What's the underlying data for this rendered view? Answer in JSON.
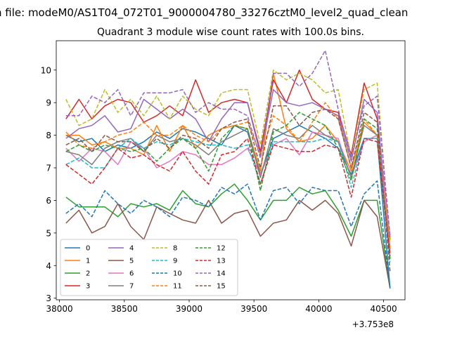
{
  "figure": {
    "suptitle": "n file: modeM0/AS1T04_072T01_9000004780_33276cztM0_level2_quad_clean",
    "offset_label": "+3.753e8"
  },
  "chart_data": {
    "type": "line",
    "title": "Quadrant 3 module wise count rates with 100.0s bins.",
    "xlabel": "",
    "ylabel": "",
    "x_offset": 375300000,
    "xlim": [
      37975,
      40665
    ],
    "ylim": [
      2.95,
      10.9
    ],
    "xticks": [
      38000,
      38500,
      39000,
      39500,
      40000,
      40500
    ],
    "xtick_labels": [
      "38000",
      "38500",
      "39000",
      "39500",
      "40000",
      "40500"
    ],
    "yticks": [
      3,
      4,
      5,
      6,
      7,
      8,
      9,
      10
    ],
    "ytick_labels": [
      "3",
      "4",
      "5",
      "6",
      "7",
      "8",
      "9",
      "10"
    ],
    "grid": false,
    "legend": {
      "position": "lower-left",
      "columns": 4
    },
    "x": [
      38050,
      38150,
      38250,
      38350,
      38450,
      38550,
      38650,
      38750,
      38850,
      38950,
      39050,
      39150,
      39250,
      39350,
      39450,
      39550,
      39650,
      39750,
      39850,
      39950,
      40050,
      40150,
      40250,
      40350,
      40450,
      40550
    ],
    "series": [
      {
        "name": "0",
        "color": "#1f77b4",
        "dash": "solid",
        "values": [
          8.0,
          7.8,
          7.9,
          7.5,
          7.7,
          7.6,
          7.8,
          8.1,
          7.9,
          8.2,
          8.1,
          7.9,
          7.7,
          8.3,
          8.1,
          6.8,
          7.9,
          8.1,
          8.3,
          8.1,
          7.9,
          7.6,
          6.8,
          7.9,
          7.9,
          3.3
        ]
      },
      {
        "name": "1",
        "color": "#ff7f0e",
        "dash": "solid",
        "values": [
          8.0,
          8.0,
          7.7,
          7.8,
          7.6,
          7.6,
          7.4,
          8.3,
          7.5,
          8.3,
          7.6,
          8.0,
          8.2,
          8.3,
          8.2,
          6.9,
          9.9,
          8.2,
          7.8,
          7.9,
          8.3,
          7.8,
          6.9,
          8.4,
          8.0,
          4.4
        ]
      },
      {
        "name": "2",
        "color": "#2ca02c",
        "dash": "solid",
        "values": [
          6.1,
          5.8,
          5.8,
          5.8,
          5.5,
          5.9,
          5.8,
          5.9,
          5.7,
          6.3,
          5.9,
          5.8,
          6.2,
          6.5,
          6.0,
          5.4,
          6.0,
          6.0,
          6.4,
          6.2,
          6.3,
          5.7,
          4.9,
          6.0,
          6.0,
          3.3
        ]
      },
      {
        "name": "3",
        "color": "#d62728",
        "dash": "solid",
        "values": [
          8.5,
          9.1,
          8.5,
          8.9,
          9.1,
          9.0,
          8.4,
          8.6,
          8.9,
          8.6,
          9.7,
          8.7,
          9.0,
          9.1,
          9.0,
          7.5,
          9.7,
          9.0,
          10.0,
          9.1,
          8.8,
          8.7,
          7.4,
          9.6,
          8.5,
          4.8
        ]
      },
      {
        "name": "4",
        "color": "#9467bd",
        "dash": "solid",
        "values": [
          7.9,
          8.2,
          8.3,
          8.6,
          8.1,
          8.2,
          9.1,
          8.8,
          8.5,
          8.8,
          8.5,
          7.8,
          8.5,
          9.0,
          9.0,
          7.4,
          9.4,
          9.0,
          8.9,
          9.0,
          8.8,
          8.6,
          7.2,
          9.1,
          8.7,
          4.5
        ]
      },
      {
        "name": "5",
        "color": "#8c564b",
        "dash": "solid",
        "values": [
          5.3,
          5.7,
          5.0,
          5.2,
          5.9,
          5.2,
          4.8,
          5.8,
          5.6,
          5.4,
          5.3,
          6.0,
          5.3,
          5.6,
          5.7,
          4.9,
          5.3,
          5.4,
          6.0,
          5.7,
          6.0,
          5.6,
          4.6,
          6.0,
          5.5,
          3.3
        ]
      },
      {
        "name": "6",
        "color": "#e377c2",
        "dash": "solid",
        "values": [
          7.6,
          7.2,
          7.6,
          7.5,
          7.1,
          7.8,
          7.6,
          7.0,
          7.2,
          7.5,
          7.4,
          7.1,
          7.1,
          7.3,
          7.6,
          6.8,
          7.7,
          7.9,
          7.4,
          8.1,
          8.0,
          7.9,
          6.7,
          7.8,
          8.0,
          4.9
        ]
      },
      {
        "name": "7",
        "color": "#7f7f7f",
        "dash": "solid",
        "values": [
          7.5,
          7.4,
          7.1,
          7.6,
          7.8,
          7.9,
          7.5,
          8.0,
          7.8,
          7.9,
          7.7,
          7.4,
          7.8,
          8.0,
          8.2,
          6.7,
          8.2,
          8.0,
          7.9,
          8.3,
          8.0,
          7.8,
          6.7,
          8.3,
          8.0,
          4.2
        ]
      },
      {
        "name": "8",
        "color": "#bcbd22",
        "dash": "dashed",
        "values": [
          9.1,
          8.3,
          8.5,
          9.4,
          8.7,
          9.1,
          8.6,
          9.2,
          8.5,
          9.2,
          8.8,
          8.6,
          9.3,
          9.4,
          9.4,
          7.7,
          10.0,
          9.7,
          9.9,
          9.7,
          9.3,
          9.4,
          7.3,
          9.4,
          9.6,
          4.7
        ]
      },
      {
        "name": "9",
        "color": "#17becf",
        "dash": "dashed",
        "values": [
          7.1,
          7.3,
          7.0,
          7.0,
          7.6,
          7.9,
          7.6,
          7.8,
          7.7,
          7.9,
          7.8,
          7.7,
          7.7,
          7.6,
          7.7,
          6.5,
          7.8,
          7.8,
          7.8,
          7.8,
          7.9,
          7.8,
          6.4,
          7.9,
          7.9,
          4.1
        ]
      },
      {
        "name": "10",
        "color": "#1f77b4",
        "dash": "dashed",
        "values": [
          5.6,
          5.9,
          5.5,
          6.3,
          5.9,
          5.6,
          6.0,
          5.8,
          5.5,
          6.1,
          6.0,
          5.8,
          6.4,
          6.2,
          6.5,
          5.4,
          6.3,
          6.4,
          5.9,
          6.4,
          6.3,
          6.3,
          5.2,
          6.2,
          6.6,
          3.3
        ]
      },
      {
        "name": "11",
        "color": "#ff7f0e",
        "dash": "dashed",
        "values": [
          8.1,
          7.7,
          7.6,
          7.8,
          8.0,
          8.1,
          8.4,
          8.0,
          8.0,
          8.3,
          8.0,
          7.8,
          8.2,
          8.3,
          8.4,
          7.4,
          8.6,
          8.3,
          7.8,
          8.4,
          9.0,
          8.5,
          7.0,
          8.5,
          8.0,
          4.5
        ]
      },
      {
        "name": "12",
        "color": "#2ca02c",
        "dash": "dashed",
        "values": [
          7.5,
          7.7,
          7.5,
          7.7,
          7.6,
          7.5,
          7.6,
          7.2,
          7.6,
          7.9,
          7.6,
          6.9,
          7.9,
          8.3,
          8.2,
          6.3,
          8.1,
          8.3,
          8.7,
          8.5,
          8.3,
          7.6,
          6.6,
          8.5,
          8.2,
          4.2
        ]
      },
      {
        "name": "13",
        "color": "#d62728",
        "dash": "dashed",
        "values": [
          7.1,
          6.8,
          6.5,
          7.0,
          7.6,
          7.3,
          7.4,
          7.1,
          6.9,
          7.5,
          6.9,
          6.5,
          7.4,
          7.5,
          7.9,
          6.5,
          7.7,
          7.6,
          7.5,
          7.5,
          7.7,
          7.6,
          6.1,
          7.9,
          7.8,
          4.3
        ]
      },
      {
        "name": "14",
        "color": "#9467bd",
        "dash": "dashed",
        "values": [
          8.6,
          8.6,
          9.2,
          9.0,
          9.4,
          8.6,
          9.3,
          9.3,
          9.3,
          9.4,
          8.7,
          9.0,
          8.8,
          8.8,
          8.6,
          7.3,
          9.9,
          9.9,
          9.5,
          9.9,
          10.6,
          8.8,
          7.3,
          8.9,
          9.2,
          4.9
        ]
      },
      {
        "name": "15",
        "color": "#8c564b",
        "dash": "dashed",
        "values": [
          7.7,
          7.9,
          7.5,
          8.0,
          7.8,
          7.8,
          7.5,
          7.9,
          7.6,
          8.0,
          7.9,
          7.6,
          8.2,
          8.4,
          8.5,
          7.0,
          8.9,
          8.9,
          8.3,
          8.7,
          8.8,
          8.5,
          7.0,
          8.7,
          8.4,
          3.8
        ]
      }
    ]
  }
}
